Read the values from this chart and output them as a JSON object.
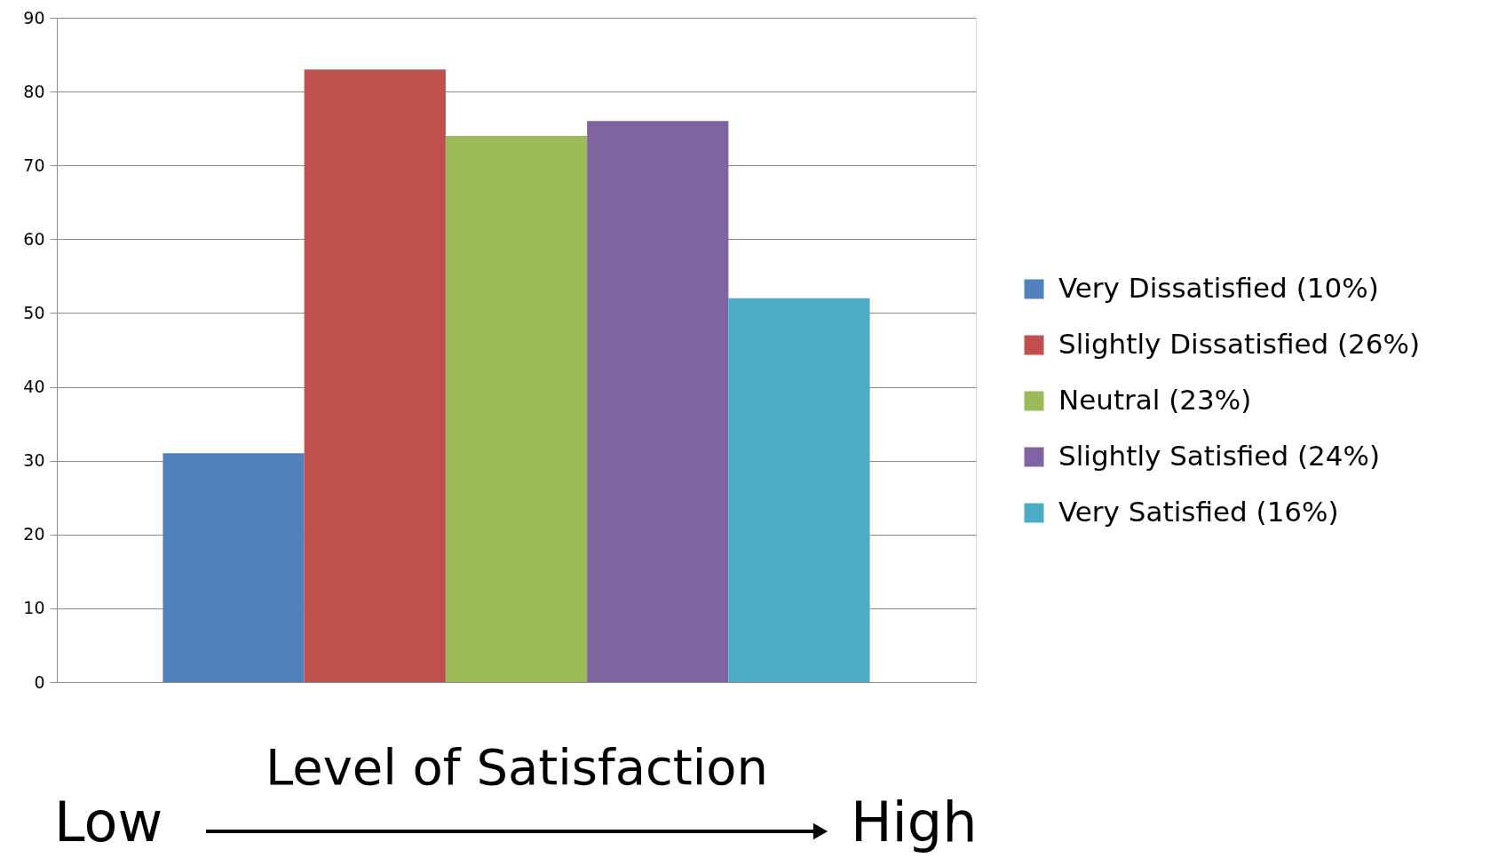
{
  "chart_data": {
    "type": "bar",
    "xlabel": "Level of Satisfaction",
    "categories": [
      null
    ],
    "series": [
      {
        "name": "Very Dissatisfied (10%)",
        "color": "#4f81bd",
        "values": [
          31
        ]
      },
      {
        "name": "Slightly Dissatisfied (26%)",
        "color": "#c0504d",
        "values": [
          83
        ]
      },
      {
        "name": "Neutral (23%)",
        "color": "#9bbb59",
        "values": [
          74
        ]
      },
      {
        "name": "Slightly Satisfied (24%)",
        "color": "#8064a2",
        "values": [
          76
        ]
      },
      {
        "name": "Very Satisfied (16%)",
        "color": "#4bacc6",
        "values": [
          52
        ]
      }
    ],
    "ylim": [
      0,
      90
    ],
    "yticks": [
      0,
      10,
      20,
      30,
      40,
      50,
      60,
      70,
      80,
      90
    ],
    "grid": "y",
    "legend": "right",
    "tick_labels": "y",
    "annotations": [
      "Low",
      "High"
    ]
  }
}
